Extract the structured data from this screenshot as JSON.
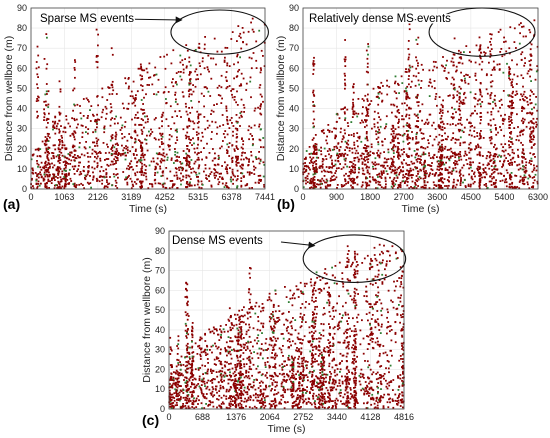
{
  "chart_data": [
    {
      "type": "scatter",
      "panel_label": "(a)",
      "xlabel": "Time (s)",
      "ylabel": "Distance from wellbore (m)",
      "xlim": [
        0,
        7441
      ],
      "ylim": [
        0,
        90
      ],
      "x_ticks": [
        "0",
        "1063",
        "2126",
        "3189",
        "4252",
        "5315",
        "6378",
        "7441"
      ],
      "y_ticks": [
        "0",
        "10",
        "20",
        "30",
        "40",
        "50",
        "60",
        "70",
        "80",
        "90"
      ],
      "grid": true,
      "marker_color": "#8b0000",
      "annotation": {
        "text": "Sparse MS events",
        "ellipse_center": [
          6000,
          78
        ],
        "ellipse_rx": 1550,
        "ellipse_ry": 11
      },
      "density": "sparse",
      "series": [
        {
          "name": "",
          "x": [],
          "y": []
        }
      ]
    },
    {
      "type": "scatter",
      "panel_label": "(b)",
      "xlabel": "Time (s)",
      "ylabel": "Distance from wellbore (m)",
      "xlim": [
        0,
        6300
      ],
      "ylim": [
        0,
        90
      ],
      "x_ticks": [
        "0",
        "900",
        "1800",
        "2700",
        "3600",
        "4500",
        "5400",
        "6300"
      ],
      "y_ticks": [
        "0",
        "10",
        "20",
        "30",
        "40",
        "50",
        "60",
        "70",
        "80",
        "90"
      ],
      "grid": true,
      "marker_color": "#8b0000",
      "annotation": {
        "text": "Relatively dense MS events",
        "ellipse_center": [
          4800,
          78
        ],
        "ellipse_rx": 1420,
        "ellipse_ry": 12
      },
      "density": "medium",
      "series": [
        {
          "name": "",
          "x": [],
          "y": []
        }
      ]
    },
    {
      "type": "scatter",
      "panel_label": "(c)",
      "xlabel": "Time (s)",
      "ylabel": "Distance from wellbore (m)",
      "xlim": [
        0,
        4816
      ],
      "ylim": [
        0,
        90
      ],
      "x_ticks": [
        "0",
        "688",
        "1376",
        "2064",
        "2752",
        "3440",
        "4128",
        "4816"
      ],
      "y_ticks": [
        "0",
        "10",
        "20",
        "30",
        "40",
        "50",
        "60",
        "70",
        "80",
        "90"
      ],
      "grid": true,
      "marker_color": "#8b0000",
      "annotation": {
        "text": "Dense MS events",
        "ellipse_center": [
          3800,
          76
        ],
        "ellipse_rx": 1050,
        "ellipse_ry": 12
      },
      "density": "dense",
      "series": [
        {
          "name": "",
          "x": [],
          "y": []
        }
      ]
    }
  ]
}
